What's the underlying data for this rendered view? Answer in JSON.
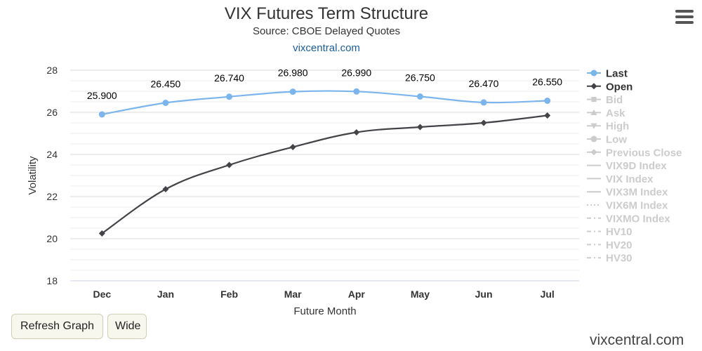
{
  "header": {
    "title": "VIX Futures Term Structure",
    "subtitle": "Source: CBOE Delayed Quotes",
    "link": "vixcentral.com"
  },
  "menu": {
    "icon": "hamburger-menu-icon"
  },
  "buttons": {
    "refresh": "Refresh Graph",
    "wide": "Wide"
  },
  "watermark": "vixcentral.com",
  "colors": {
    "last": "#7cb5ec",
    "open": "#434348",
    "inactive": "#cccccc",
    "grid": "#e6e6e6"
  },
  "chart_data": {
    "type": "line",
    "title": "VIX Futures Term Structure",
    "subtitle": "Source: CBOE Delayed Quotes",
    "xlabel": "Future Month",
    "ylabel": "Volatility",
    "categories": [
      "Dec",
      "Jan",
      "Feb",
      "Mar",
      "Apr",
      "May",
      "Jun",
      "Jul"
    ],
    "ylim": [
      18,
      28
    ],
    "yticks": [
      18,
      20,
      22,
      24,
      26,
      28
    ],
    "grid": true,
    "legend_position": "right",
    "series": [
      {
        "name": "Last",
        "active": true,
        "marker": "circle",
        "values": [
          25.9,
          26.45,
          26.74,
          26.98,
          26.99,
          26.75,
          26.47,
          26.55
        ],
        "labels": [
          "25.900",
          "26.450",
          "26.740",
          "26.980",
          "26.990",
          "26.750",
          "26.470",
          "26.550"
        ]
      },
      {
        "name": "Open",
        "active": true,
        "marker": "diamond",
        "values": [
          20.25,
          22.35,
          23.5,
          24.35,
          25.05,
          25.3,
          25.5,
          25.85
        ]
      }
    ],
    "legend": [
      {
        "name": "Last",
        "active": true,
        "symbol": "circle"
      },
      {
        "name": "Open",
        "active": true,
        "symbol": "diamond"
      },
      {
        "name": "Bid",
        "active": false,
        "symbol": "square"
      },
      {
        "name": "Ask",
        "active": false,
        "symbol": "triangle"
      },
      {
        "name": "High",
        "active": false,
        "symbol": "triangle-down"
      },
      {
        "name": "Low",
        "active": false,
        "symbol": "circle"
      },
      {
        "name": "Previous Close",
        "active": false,
        "symbol": "diamond"
      },
      {
        "name": "VIX9D Index",
        "active": false,
        "symbol": "solid"
      },
      {
        "name": "VIX Index",
        "active": false,
        "symbol": "solid"
      },
      {
        "name": "VIX3M Index",
        "active": false,
        "symbol": "solid"
      },
      {
        "name": "VIX6M Index",
        "active": false,
        "symbol": "dotted"
      },
      {
        "name": "VIXMO Index",
        "active": false,
        "symbol": "dashdot"
      },
      {
        "name": "HV10",
        "active": false,
        "symbol": "dashdot"
      },
      {
        "name": "HV20",
        "active": false,
        "symbol": "dashdot"
      },
      {
        "name": "HV30",
        "active": false,
        "symbol": "dashdot"
      }
    ]
  }
}
